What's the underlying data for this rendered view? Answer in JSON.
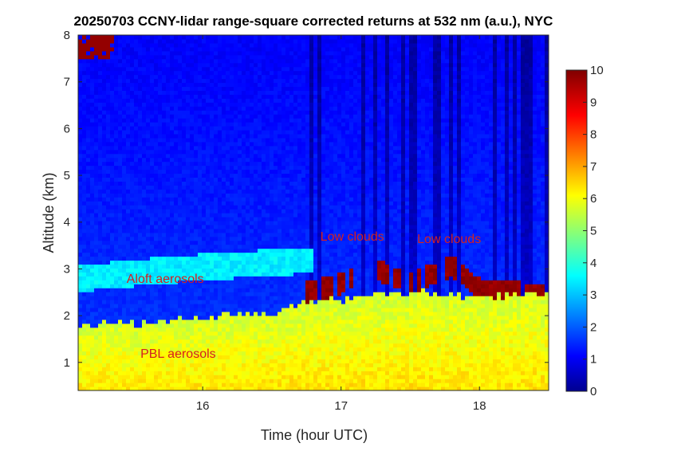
{
  "chart_data": {
    "type": "heatmap",
    "title": "20250703 CCNY-lidar range-square corrected returns at 532 nm (a.u.), NYC",
    "xlabel": "Time (hour UTC)",
    "ylabel": "Altitude (km)",
    "xlim": [
      15.1,
      18.5
    ],
    "ylim": [
      0.4,
      8
    ],
    "xticks": [
      16,
      17,
      18
    ],
    "yticks": [
      1,
      2,
      3,
      4,
      5,
      6,
      7,
      8
    ],
    "colorbar": {
      "min": 0,
      "max": 10,
      "ticks": [
        0,
        1,
        2,
        3,
        4,
        5,
        6,
        7,
        8,
        9,
        10
      ],
      "colormap": "jet"
    },
    "annotations": [
      {
        "text": "Low clouds",
        "x": 16.85,
        "y": 3.6
      },
      {
        "text": "Low clouds",
        "x": 17.55,
        "y": 3.55
      },
      {
        "text": "Aloft aerosols",
        "x": 15.45,
        "y": 2.7
      },
      {
        "text": "PBL aerosols",
        "x": 15.55,
        "y": 1.1
      }
    ],
    "annotation_color": "#d42020",
    "features": {
      "pbl_top_km": [
        {
          "x": 15.1,
          "y": 1.8
        },
        {
          "x": 15.6,
          "y": 1.85
        },
        {
          "x": 16.0,
          "y": 1.95
        },
        {
          "x": 16.5,
          "y": 2.05
        },
        {
          "x": 16.8,
          "y": 2.3
        },
        {
          "x": 17.2,
          "y": 2.4
        },
        {
          "x": 17.6,
          "y": 2.5
        },
        {
          "x": 18.0,
          "y": 2.4
        },
        {
          "x": 18.5,
          "y": 2.5
        }
      ],
      "aloft_layer_km": [
        {
          "x": 15.1,
          "y": 2.8
        },
        {
          "x": 15.8,
          "y": 3.0
        },
        {
          "x": 16.3,
          "y": 3.1
        },
        {
          "x": 16.8,
          "y": 3.2
        }
      ],
      "cloud_top_km": [
        {
          "x": 16.7,
          "y": 2.7
        },
        {
          "x": 17.0,
          "y": 2.9
        },
        {
          "x": 17.2,
          "y": 3.3
        },
        {
          "x": 17.5,
          "y": 2.9
        },
        {
          "x": 17.8,
          "y": 3.3
        },
        {
          "x": 18.0,
          "y": 2.8
        },
        {
          "x": 18.4,
          "y": 2.7
        }
      ]
    }
  }
}
